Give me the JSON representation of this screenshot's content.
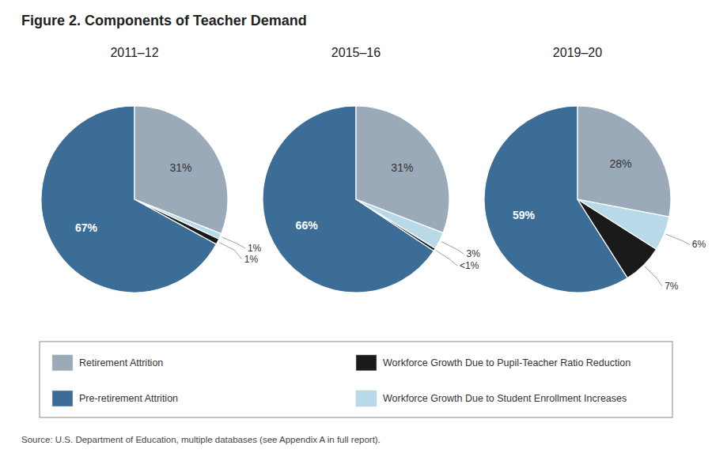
{
  "title": "Figure 2. Components of Teacher Demand",
  "annotations": [
    "Source: U.S. Department of Education, multiple databases (see Appendix A in full report)."
  ],
  "chart_data": [
    {
      "type": "pie",
      "title": "2011–12",
      "categories": [
        "Pre-retirement Attrition",
        "Workforce Growth Due to Pupil-Teacher Ratio Reduction",
        "Workforce Growth Due to Student Enrollment Increases",
        "Retirement Attrition"
      ],
      "values": [
        67,
        1,
        1,
        31
      ],
      "value_labels": [
        "67%",
        "1%",
        "1%",
        "31%"
      ],
      "colors": [
        "#3B6D96",
        "#1A1A1A",
        "#B8D9E8",
        "#9BAAB8"
      ],
      "data_labels": true,
      "legend": "bottom"
    },
    {
      "type": "pie",
      "title": "2015–16",
      "categories": [
        "Pre-retirement Attrition",
        "Workforce Growth Due to Pupil-Teacher Ratio Reduction",
        "Workforce Growth Due to Student Enrollment Increases",
        "Retirement Attrition"
      ],
      "values": [
        66,
        0.5,
        3,
        31
      ],
      "value_labels": [
        "66%",
        "<1%",
        "3%",
        "31%"
      ],
      "colors": [
        "#3B6D96",
        "#1A1A1A",
        "#B8D9E8",
        "#9BAAB8"
      ],
      "data_labels": true
    },
    {
      "type": "pie",
      "title": "2019–20",
      "categories": [
        "Pre-retirement Attrition",
        "Workforce Growth Due to Pupil-Teacher Ratio Reduction",
        "Workforce Growth Due to Student Enrollment Increases",
        "Retirement Attrition"
      ],
      "values": [
        59,
        7,
        6,
        28
      ],
      "value_labels": [
        "59%",
        "7%",
        "6%",
        "28%"
      ],
      "colors": [
        "#3B6D96",
        "#1A1A1A",
        "#B8D9E8",
        "#9BAAB8"
      ],
      "data_labels": true
    }
  ]
}
